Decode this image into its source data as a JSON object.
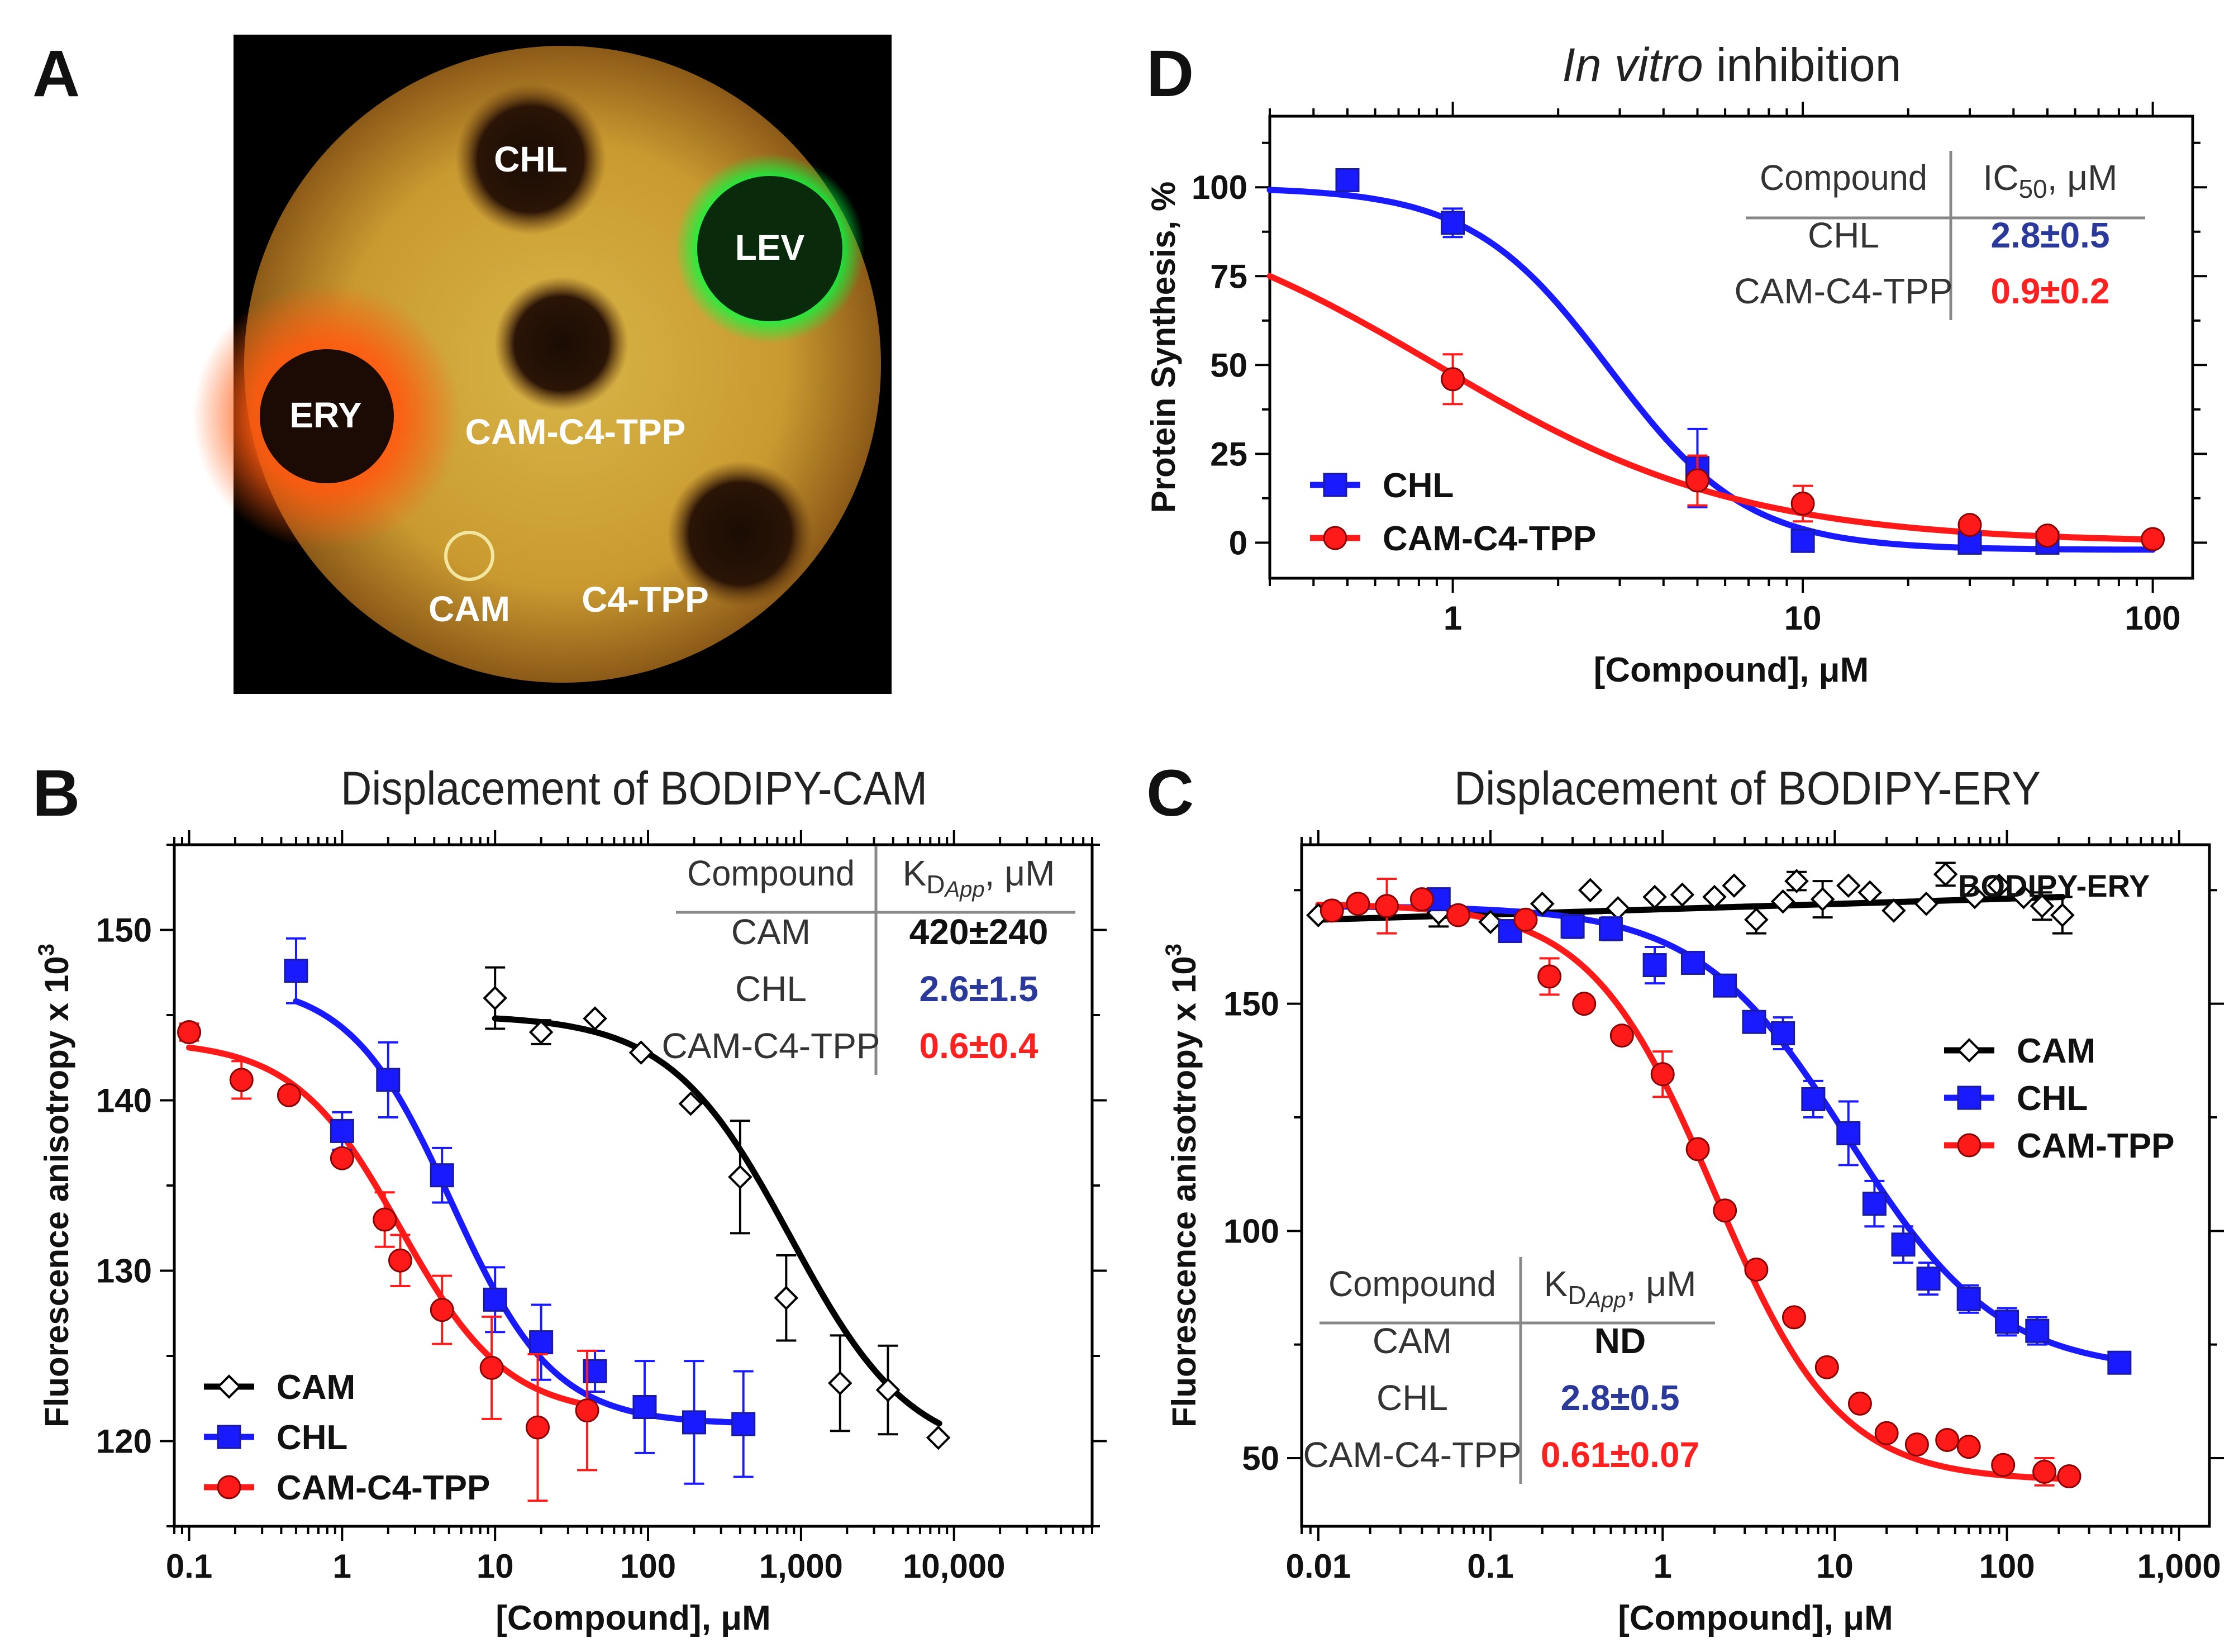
{
  "panel_letters": {
    "a": "A",
    "b": "B",
    "c": "C",
    "d": "D"
  },
  "dish": {
    "labels": [
      "CHL",
      "LEV",
      "ERY",
      "CAM-C4-TPP",
      "CAM",
      "C4-TPP"
    ]
  },
  "colors": {
    "cam": "#000000",
    "chl": "#1a1aff",
    "tpp": "#ff1a1a",
    "table_chl": "#2b3a9a",
    "table_tpp": "#ff2020"
  },
  "chart_data": [
    {
      "id": "B",
      "type": "scatter",
      "title": "Displacement of BODIPY-CAM",
      "xlabel": "[Compound], μM",
      "ylabel": "Fluorescence anisotropy x 10",
      "ylabel_sup": "3",
      "xscale": "log",
      "xlim": [
        0.08,
        80000
      ],
      "ylim": [
        115,
        155
      ],
      "xticks": [
        0.1,
        1,
        10,
        100,
        1000,
        10000
      ],
      "xtick_labels": [
        "0.1",
        "1",
        "10",
        "100",
        "1,000",
        "10,000"
      ],
      "yticks": [
        120,
        130,
        140,
        150
      ],
      "ytick_labels": [
        "120",
        "130",
        "140",
        "150"
      ],
      "legend": [
        "CAM",
        "CHL",
        "CAM-C4-TPP"
      ],
      "series": [
        {
          "name": "CAM",
          "marker": "diamond",
          "color": "#000000",
          "points": [
            [
              10,
              146,
              1.8
            ],
            [
              20,
              144,
              0.7
            ],
            [
              45,
              144.8,
              0
            ],
            [
              90,
              142.8,
              0
            ],
            [
              190,
              139.8,
              0
            ],
            [
              400,
              135.5,
              3.3
            ],
            [
              800,
              128.4,
              2.5
            ],
            [
              1800,
              123.4,
              2.8
            ],
            [
              3700,
              123,
              2.6
            ],
            [
              7900,
              120.2,
              0
            ]
          ],
          "curve": {
            "top": 145,
            "bottom": 119,
            "ec50": 850,
            "hill": 1.1,
            "x0": 10,
            "x1": 8000
          }
        },
        {
          "name": "CHL",
          "marker": "square",
          "color": "#1a1aff",
          "points": [
            [
              0.5,
              147.6,
              1.9
            ],
            [
              1,
              138.2,
              1.1
            ],
            [
              2,
              141.2,
              2.2
            ],
            [
              4.5,
              135.6,
              1.6
            ],
            [
              10,
              128.3,
              1.9
            ],
            [
              20,
              125.8,
              2.2
            ],
            [
              45,
              124.1,
              1.2
            ],
            [
              95,
              122,
              2.7
            ],
            [
              200,
              121.1,
              3.6
            ],
            [
              420,
              121,
              3.1
            ]
          ],
          "curve": {
            "top": 147,
            "bottom": 121,
            "ec50": 5.2,
            "hill": 1.3,
            "x0": 0.5,
            "x1": 420
          }
        },
        {
          "name": "CAM-C4-TPP",
          "marker": "circle",
          "color": "#ff1a1a",
          "points": [
            [
              0.1,
              144,
              0.5
            ],
            [
              0.22,
              141.2,
              1.1
            ],
            [
              0.45,
              140.3,
              0
            ],
            [
              1,
              136.6,
              0
            ],
            [
              1.9,
              133,
              1.6
            ],
            [
              2.4,
              130.6,
              1.5
            ],
            [
              4.5,
              127.7,
              2
            ],
            [
              9.5,
              124.3,
              3
            ],
            [
              19,
              120.8,
              4.3
            ],
            [
              40,
              121.8,
              3.5
            ]
          ],
          "curve": {
            "top": 143.5,
            "bottom": 121.5,
            "ec50": 2.4,
            "hill": 1.25,
            "x0": 0.1,
            "x1": 40
          }
        }
      ],
      "table": {
        "header": [
          "Compound",
          "K",
          "D",
          "App",
          ", μM"
        ],
        "rows": [
          [
            "CAM",
            "420±240"
          ],
          [
            "CHL",
            "2.6±1.5"
          ],
          [
            "CAM-C4-TPP",
            "0.6±0.4"
          ]
        ]
      }
    },
    {
      "id": "C",
      "type": "scatter",
      "title": "Displacement of BODIPY-ERY",
      "xlabel": "[Compound], μM",
      "ylabel": "Fluorescence anisotropy x 10",
      "ylabel_sup": "3",
      "xscale": "log",
      "xlim": [
        0.008,
        1500
      ],
      "ylim": [
        35,
        185
      ],
      "xticks": [
        0.01,
        0.1,
        1,
        10,
        100,
        1000
      ],
      "xtick_labels": [
        "0.01",
        "0.1",
        "1",
        "10",
        "100",
        "1,000"
      ],
      "yticks": [
        50,
        100,
        150
      ],
      "ytick_labels": [
        "50",
        "100",
        "150"
      ],
      "annotation": "BODIPY-ERY",
      "legend": [
        "CAM",
        "CHL",
        "CAM-TPP"
      ],
      "series": [
        {
          "name": "CAM",
          "marker": "diamond",
          "color": "#000000",
          "points": [
            [
              0.01,
              169.5,
              0
            ],
            [
              0.05,
              170,
              3
            ],
            [
              0.1,
              168,
              0
            ],
            [
              0.2,
              172,
              0
            ],
            [
              0.38,
              175,
              0
            ],
            [
              0.55,
              171,
              0
            ],
            [
              0.9,
              173.5,
              0
            ],
            [
              1.3,
              174,
              0
            ],
            [
              2,
              173.5,
              0
            ],
            [
              2.6,
              176,
              0
            ],
            [
              3.5,
              168.5,
              3
            ],
            [
              5,
              172.5,
              0
            ],
            [
              6,
              177,
              2
            ],
            [
              8.5,
              173,
              4
            ],
            [
              12,
              176,
              0
            ],
            [
              16,
              174.5,
              0
            ],
            [
              22,
              170.5,
              0
            ],
            [
              34,
              172,
              0
            ],
            [
              44,
              178.5,
              2.5
            ],
            [
              65,
              173.5,
              0
            ],
            [
              90,
              176,
              0
            ],
            [
              125,
              173.5,
              0
            ],
            [
              160,
              171.5,
              3
            ],
            [
              210,
              169.5,
              4
            ]
          ],
          "curve": {
            "type": "linear",
            "y0": 168.5,
            "y1": 173.5,
            "x0": 0.01,
            "x1": 210
          }
        },
        {
          "name": "CHL",
          "marker": "square",
          "color": "#1a1aff",
          "points": [
            [
              0.05,
              173,
              0
            ],
            [
              0.13,
              166,
              0
            ],
            [
              0.3,
              167,
              2.5
            ],
            [
              0.5,
              166.5,
              2.5
            ],
            [
              0.9,
              158.5,
              4
            ],
            [
              1.5,
              159,
              0
            ],
            [
              2.3,
              154,
              0
            ],
            [
              3.4,
              146,
              0
            ],
            [
              5,
              143.5,
              3.5
            ],
            [
              7.5,
              129,
              4
            ],
            [
              12,
              121.5,
              7
            ],
            [
              17,
              106,
              5
            ],
            [
              25,
              97,
              4
            ],
            [
              35,
              89.5,
              3.5
            ],
            [
              60,
              85,
              3
            ],
            [
              100,
              80,
              3
            ],
            [
              150,
              78,
              3
            ],
            [
              450,
              71,
              0
            ]
          ],
          "curve": {
            "top": 171.5,
            "bottom": 69,
            "ec50": 12,
            "hill": 1.0,
            "x0": 0.01,
            "x1": 450
          }
        },
        {
          "name": "CAM-TPP",
          "marker": "circle",
          "color": "#ff1a1a",
          "points": [
            [
              0.012,
              170.5,
              0
            ],
            [
              0.017,
              172,
              0
            ],
            [
              0.025,
              171.5,
              6
            ],
            [
              0.04,
              173,
              0
            ],
            [
              0.065,
              169.5,
              0
            ],
            [
              0.16,
              168.5,
              0
            ],
            [
              0.22,
              156,
              4
            ],
            [
              0.35,
              150,
              0
            ],
            [
              0.58,
              143,
              0
            ],
            [
              1,
              134.5,
              5
            ],
            [
              1.6,
              118,
              0
            ],
            [
              2.3,
              104.5,
              0
            ],
            [
              3.5,
              91.5,
              0
            ],
            [
              5.8,
              81,
              0
            ],
            [
              9,
              70,
              0
            ],
            [
              14,
              62,
              0
            ],
            [
              20,
              55.5,
              0
            ],
            [
              30,
              53,
              0
            ],
            [
              45,
              54,
              0
            ],
            [
              60,
              52.5,
              0
            ],
            [
              95,
              48.5,
              0
            ],
            [
              165,
              47,
              3
            ],
            [
              230,
              46,
              0
            ]
          ],
          "curve": {
            "top": 172,
            "bottom": 45,
            "ec50": 2.0,
            "hill": 1.2,
            "x0": 0.01,
            "x1": 230
          }
        }
      ],
      "table": {
        "header": [
          "Compound",
          "K",
          "D",
          "App",
          ", μM"
        ],
        "rows": [
          [
            "CAM",
            "ND"
          ],
          [
            "CHL",
            "2.8±0.5"
          ],
          [
            "CAM-C4-TPP",
            "0.61±0.07"
          ]
        ]
      }
    },
    {
      "id": "D",
      "type": "scatter",
      "title_italic": "In vitro",
      "title_rest": " inhibition",
      "xlabel": "[Compound], μM",
      "ylabel": "Protein Synthesis, %",
      "xscale": "log",
      "xlim": [
        0.3,
        130
      ],
      "ylim": [
        -10,
        120
      ],
      "xticks": [
        1,
        10,
        100
      ],
      "xtick_labels": [
        "1",
        "10",
        "100"
      ],
      "yticks": [
        0,
        25,
        50,
        75,
        100
      ],
      "ytick_labels": [
        "0",
        "25",
        "50",
        "75",
        "100"
      ],
      "legend": [
        "CHL",
        "CAM-C4-TPP"
      ],
      "series": [
        {
          "name": "CHL",
          "marker": "square",
          "color": "#1a1aff",
          "points": [
            [
              0.5,
              102,
              3
            ],
            [
              1,
              90,
              4
            ],
            [
              5,
              21,
              11
            ],
            [
              10,
              0.5,
              0
            ],
            [
              30,
              0,
              0
            ],
            [
              50,
              0,
              0
            ]
          ],
          "curve": {
            "top": 100,
            "bottom": -2,
            "ec50": 2.8,
            "hill": 2.2,
            "x0": 0.3,
            "x1": 100
          }
        },
        {
          "name": "CAM-C4-TPP",
          "marker": "circle",
          "color": "#ff1a1a",
          "points": [
            [
              1,
              46,
              7
            ],
            [
              5,
              17.5,
              7
            ],
            [
              10,
              11,
              5
            ],
            [
              30,
              5,
              0
            ],
            [
              50,
              2,
              0
            ],
            [
              100,
              1,
              0
            ]
          ],
          "curve": {
            "top": 100,
            "bottom": 0,
            "ec50": 0.9,
            "hill": 1.0,
            "x0": 0.3,
            "x1": 100
          }
        }
      ],
      "table": {
        "header": [
          "Compound",
          "IC",
          "50",
          ", μM"
        ],
        "rows": [
          [
            "CHL",
            "2.8±0.5"
          ],
          [
            "CAM-C4-TPP",
            "0.9±0.2"
          ]
        ]
      }
    }
  ]
}
